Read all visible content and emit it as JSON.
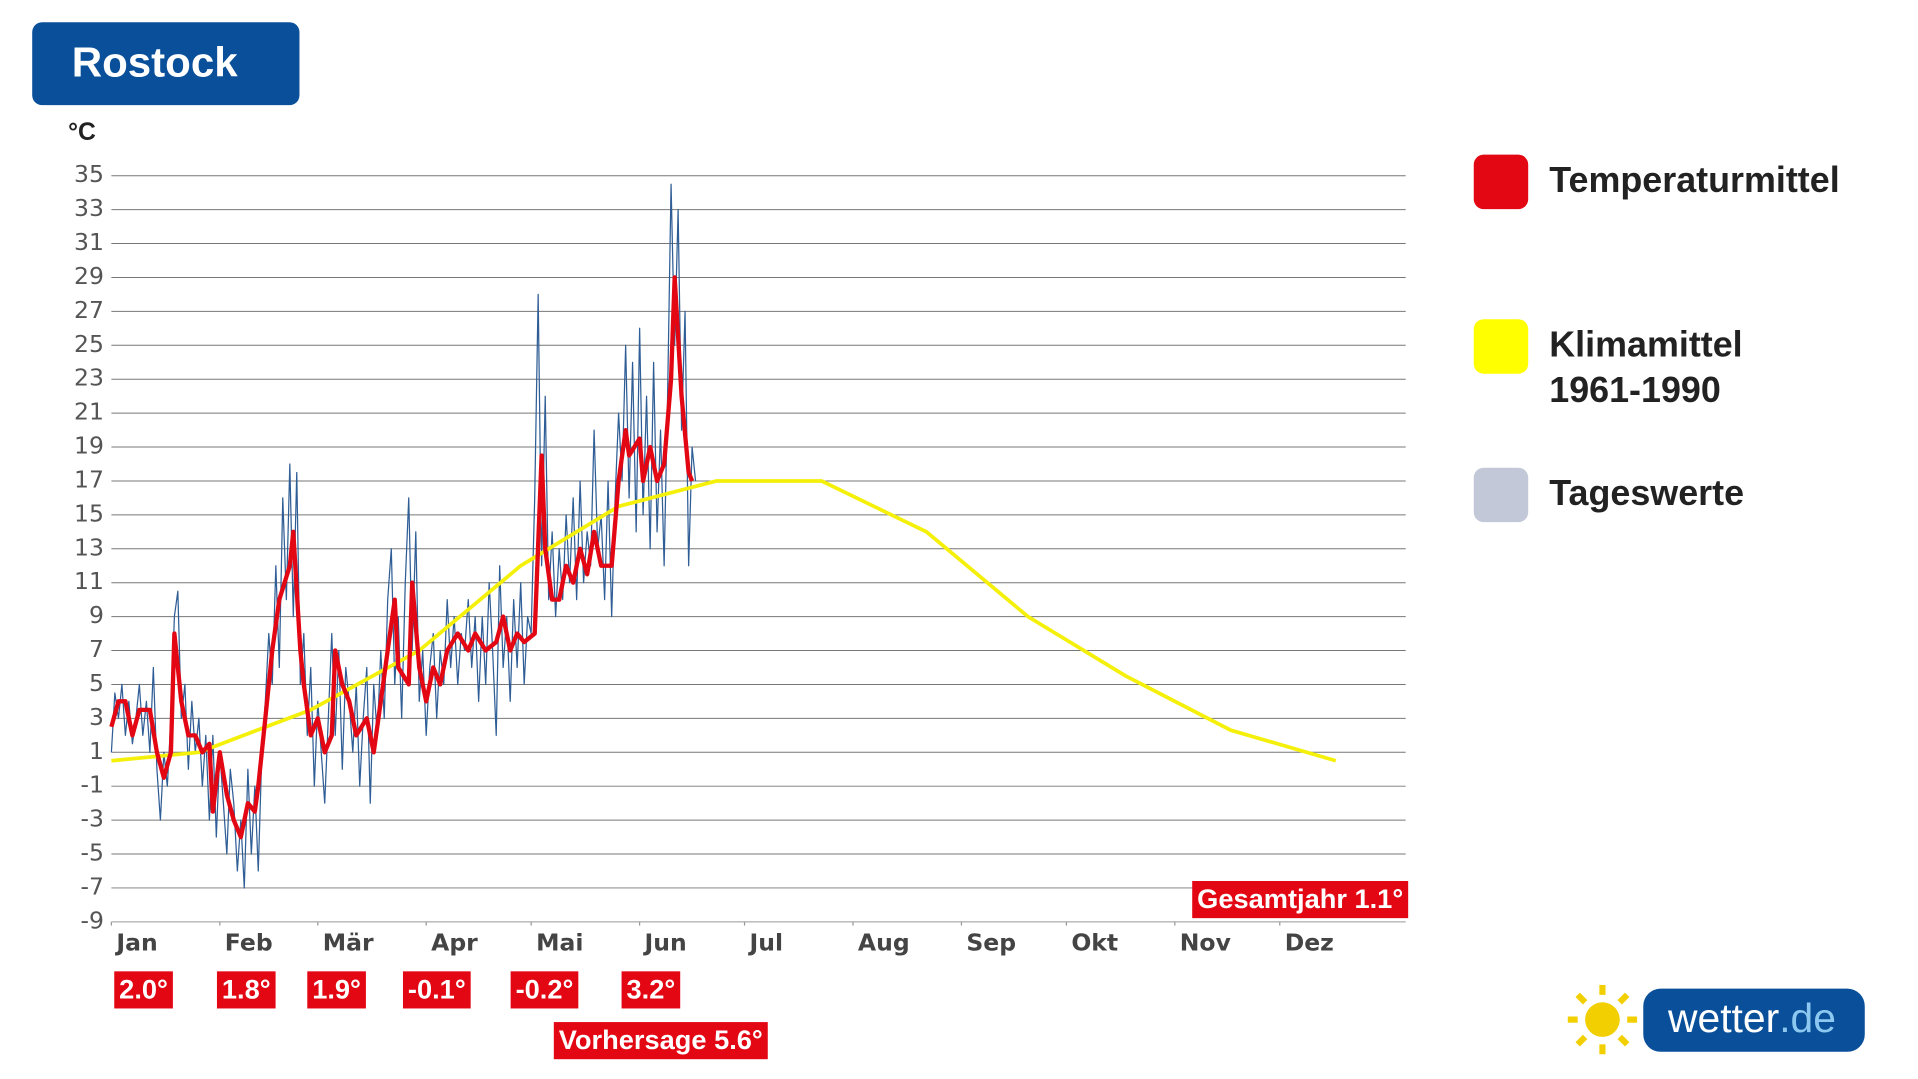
{
  "chart_data": {
    "type": "line",
    "title": "Rostock",
    "y_label": "°C",
    "xlim": [
      0,
      370
    ],
    "ylim": [
      -9,
      35
    ],
    "yticks": [
      35,
      33,
      31,
      29,
      27,
      25,
      23,
      21,
      19,
      17,
      15,
      13,
      11,
      9,
      7,
      5,
      3,
      1,
      -1,
      -3,
      -5,
      -7,
      -9
    ],
    "xticks": [
      {
        "value": 0,
        "label": "Jan"
      },
      {
        "value": 31,
        "label": "Feb"
      },
      {
        "value": 59,
        "label": "Mär"
      },
      {
        "value": 90,
        "label": "Apr"
      },
      {
        "value": 120,
        "label": "Mai"
      },
      {
        "value": 151,
        "label": "Jun"
      },
      {
        "value": 181,
        "label": "Jul"
      },
      {
        "value": 212,
        "label": "Aug"
      },
      {
        "value": 243,
        "label": "Sep"
      },
      {
        "value": 273,
        "label": "Okt"
      },
      {
        "value": 304,
        "label": "Nov"
      },
      {
        "value": 334,
        "label": "Dez"
      }
    ],
    "grid": true,
    "series": [
      {
        "name": "Temperaturmittel",
        "color": "#e30613",
        "swatch_color": "#e30613",
        "x": [
          0,
          2,
          4,
          6,
          8,
          11,
          13,
          15,
          17,
          18,
          20,
          22,
          24,
          26,
          28,
          29,
          31,
          33,
          35,
          37,
          39,
          41,
          42,
          44,
          46,
          48,
          51,
          52,
          54,
          55,
          57,
          59,
          61,
          63,
          64,
          66,
          68,
          70,
          73,
          75,
          77,
          79,
          81,
          82,
          85,
          86,
          88,
          90,
          92,
          94,
          96,
          99,
          102,
          104,
          107,
          110,
          112,
          114,
          116,
          118,
          121,
          123,
          124,
          126,
          128,
          130,
          132,
          134,
          136,
          138,
          140,
          143,
          145,
          147,
          148,
          151,
          152,
          154,
          156,
          158,
          160,
          161,
          163,
          165,
          166
        ],
        "values": [
          2.5,
          4,
          4,
          2,
          3.5,
          3.5,
          1,
          -0.5,
          1,
          8,
          4,
          2,
          2,
          1,
          1.5,
          -2.5,
          1,
          -1.5,
          -3,
          -4,
          -2,
          -2.5,
          -1,
          3,
          7,
          10,
          12,
          14,
          7,
          5,
          2,
          3,
          1,
          2,
          7,
          5,
          4,
          2,
          3,
          1,
          4,
          7,
          10,
          6,
          5,
          11,
          6,
          4,
          6,
          5,
          7,
          8,
          7,
          8,
          7,
          7.5,
          9,
          7,
          8,
          7.5,
          8,
          18.5,
          13,
          10,
          10,
          12,
          11,
          13,
          11.5,
          14,
          12,
          12,
          17,
          20,
          18.5,
          19.5,
          17,
          19,
          17,
          18,
          23,
          29,
          22,
          17.5,
          17
        ]
      },
      {
        "name": "Klimamittel 1961-1990",
        "color": "#f5f00a",
        "swatch_color": "#ffff00",
        "x": [
          0,
          25,
          57,
          88,
          117,
          145,
          173,
          203,
          233,
          262,
          290,
          320,
          350
        ],
        "values": [
          0.5,
          1,
          3.5,
          7,
          12,
          15.5,
          17,
          17,
          14,
          9,
          5.5,
          2.3,
          0.5
        ]
      },
      {
        "name": "Tageswerte",
        "color": "#2f5d95",
        "swatch_color": "#c3c8d8",
        "x": [
          0,
          1,
          2,
          3,
          4,
          5,
          6,
          7,
          8,
          9,
          10,
          11,
          12,
          13,
          14,
          15,
          16,
          17,
          18,
          19,
          20,
          21,
          22,
          23,
          24,
          25,
          26,
          27,
          28,
          29,
          30,
          31,
          32,
          33,
          34,
          35,
          36,
          37,
          38,
          39,
          40,
          41,
          42,
          43,
          44,
          45,
          46,
          47,
          48,
          49,
          50,
          51,
          52,
          53,
          54,
          55,
          56,
          57,
          58,
          59,
          60,
          61,
          62,
          63,
          64,
          65,
          66,
          67,
          68,
          69,
          70,
          71,
          72,
          73,
          74,
          75,
          76,
          77,
          78,
          79,
          80,
          81,
          82,
          83,
          84,
          85,
          86,
          87,
          88,
          89,
          90,
          91,
          92,
          93,
          94,
          95,
          96,
          97,
          98,
          99,
          100,
          101,
          102,
          103,
          104,
          105,
          106,
          107,
          108,
          109,
          110,
          111,
          112,
          113,
          114,
          115,
          116,
          117,
          118,
          119,
          120,
          121,
          122,
          123,
          124,
          125,
          126,
          127,
          128,
          129,
          130,
          131,
          132,
          133,
          134,
          135,
          136,
          137,
          138,
          139,
          140,
          141,
          142,
          143,
          144,
          145,
          146,
          147,
          148,
          149,
          150,
          151,
          152,
          153,
          154,
          155,
          156,
          157,
          158,
          159,
          160,
          161,
          162,
          163,
          164,
          165,
          166,
          167
        ],
        "values": [
          1,
          4.5,
          3,
          5,
          2,
          4,
          1.5,
          3,
          5,
          2,
          4,
          1,
          6,
          0,
          -3,
          1,
          -1,
          3,
          9,
          10.5,
          3,
          5,
          0,
          4,
          1,
          3,
          -1,
          2,
          -3,
          2,
          -4,
          1,
          -2,
          -5,
          0,
          -2,
          -6,
          -3,
          -7,
          0,
          -5,
          -1,
          -6,
          1,
          4,
          8,
          5,
          12,
          6,
          16,
          10,
          18,
          9,
          17.5,
          5,
          8,
          2,
          6,
          -1,
          4,
          1,
          -2,
          3,
          8,
          2,
          7,
          0,
          6,
          4,
          1,
          5,
          -1,
          3,
          6,
          -2,
          5,
          2,
          7,
          3,
          10,
          13,
          5,
          9,
          3,
          11,
          16,
          7,
          14,
          4,
          7,
          2,
          6,
          8,
          3,
          7,
          5,
          10,
          6,
          9,
          5,
          8,
          7,
          10,
          6,
          9,
          4,
          9,
          5,
          11,
          7,
          2,
          12,
          6,
          9,
          4,
          10,
          6,
          11,
          5,
          9,
          8,
          16,
          28,
          12,
          22,
          10,
          14,
          9,
          13,
          10,
          15,
          11,
          16,
          10,
          17,
          11,
          14,
          12,
          20,
          13,
          15,
          10,
          17,
          9,
          16,
          21,
          17,
          25,
          16,
          24,
          14,
          26,
          15,
          22,
          13,
          24,
          14,
          20,
          12,
          22,
          34.5,
          25,
          33,
          20,
          27,
          12,
          19,
          17
        ]
      }
    ],
    "monthly_labels": [
      "2.0°",
      "1.8°",
      "1.9°",
      "-0.1°",
      "-0.2°",
      "3.2°"
    ],
    "forecast_label": "Vorhersage 5.6°",
    "year_label": "Gesamtjahr 1.1°"
  },
  "logo": {
    "main": "wetter",
    "suffix": ".de"
  }
}
